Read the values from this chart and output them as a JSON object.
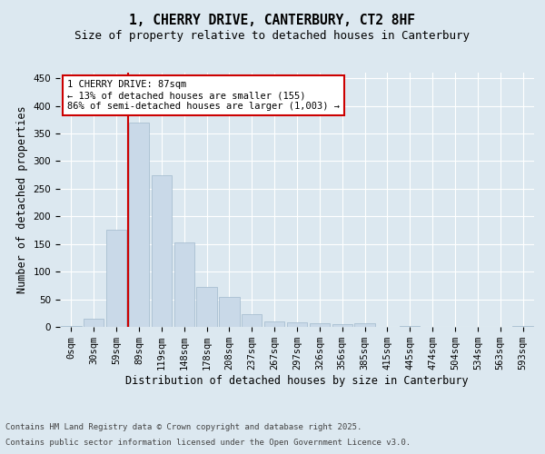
{
  "title_line1": "1, CHERRY DRIVE, CANTERBURY, CT2 8HF",
  "title_line2": "Size of property relative to detached houses in Canterbury",
  "xlabel": "Distribution of detached houses by size in Canterbury",
  "ylabel": "Number of detached properties",
  "bar_labels": [
    "0sqm",
    "30sqm",
    "59sqm",
    "89sqm",
    "119sqm",
    "148sqm",
    "178sqm",
    "208sqm",
    "237sqm",
    "267sqm",
    "297sqm",
    "326sqm",
    "356sqm",
    "385sqm",
    "415sqm",
    "445sqm",
    "474sqm",
    "504sqm",
    "534sqm",
    "563sqm",
    "593sqm"
  ],
  "bar_values": [
    2,
    15,
    175,
    370,
    275,
    152,
    73,
    54,
    23,
    10,
    9,
    7,
    5,
    7,
    0,
    2,
    0,
    0,
    0,
    0,
    2
  ],
  "bar_color": "#c9d9e8",
  "bar_edgecolor": "#a0b8cc",
  "ylim": [
    0,
    460
  ],
  "yticks": [
    0,
    50,
    100,
    150,
    200,
    250,
    300,
    350,
    400,
    450
  ],
  "property_bar_index": 2,
  "vline_color": "#cc0000",
  "annotation_text": "1 CHERRY DRIVE: 87sqm\n← 13% of detached houses are smaller (155)\n86% of semi-detached houses are larger (1,003) →",
  "annotation_box_color": "#ffffff",
  "annotation_box_edgecolor": "#cc0000",
  "background_color": "#dce8f0",
  "plot_bg_color": "#dce8f0",
  "footer_line1": "Contains HM Land Registry data © Crown copyright and database right 2025.",
  "footer_line2": "Contains public sector information licensed under the Open Government Licence v3.0.",
  "title_fontsize": 10.5,
  "subtitle_fontsize": 9,
  "axis_label_fontsize": 8.5,
  "tick_fontsize": 7.5,
  "annotation_fontsize": 7.5,
  "footer_fontsize": 6.5
}
